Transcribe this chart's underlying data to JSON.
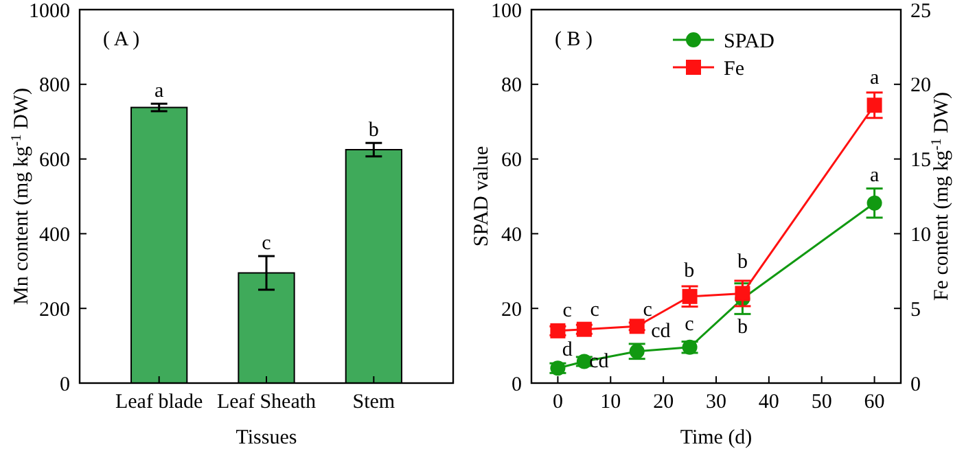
{
  "chart_data": [
    {
      "type": "bar",
      "title": "( A )",
      "xlabel": "Tissues",
      "ylabel": "Mn content (mg kg$^{-1}$ DW)",
      "categories": [
        "Leaf blade",
        "Leaf Sheath",
        "Stem"
      ],
      "values": [
        738,
        295,
        625
      ],
      "errors": [
        10,
        45,
        18
      ],
      "color": "#3faa5a",
      "ylim": [
        0,
        1000
      ],
      "yticks": [
        0,
        200,
        400,
        600,
        800,
        1000
      ],
      "grid": false,
      "annotations": [
        "a",
        "c",
        "b"
      ]
    },
    {
      "type": "line",
      "title": "( B )",
      "xlabel": "Time (d)",
      "ylabel": "SPAD value",
      "y2label": "Fe content (mg kg$^{-1}$ DW)",
      "x": [
        0,
        5,
        15,
        25,
        35,
        60
      ],
      "series": [
        {
          "name": "SPAD",
          "color": "#119911",
          "marker": "circle",
          "values": [
            4.0,
            5.8,
            8.5,
            9.6,
            22.6,
            48.2
          ],
          "errors": [
            1.3,
            1.2,
            2,
            1.5,
            4.1,
            3.9
          ]
        },
        {
          "name": "Fe",
          "color": "#ff1111",
          "marker": "square",
          "axis": "y2",
          "values": [
            3.5,
            3.6,
            3.8,
            5.8,
            6.0,
            18.6
          ],
          "errors": [
            0.3,
            0.3,
            0.25,
            0.68,
            0.85,
            0.85
          ]
        }
      ],
      "xlim": [
        -5,
        65
      ],
      "xticks": [
        0,
        10,
        20,
        30,
        40,
        50,
        60
      ],
      "ylim": [
        0,
        100
      ],
      "yticks": [
        0,
        20,
        40,
        60,
        80,
        100
      ],
      "y2lim": [
        0,
        25
      ],
      "y2ticks": [
        0,
        5,
        10,
        15,
        20,
        25
      ],
      "grid": false,
      "legend": "top",
      "line_style": "solid",
      "annotations": [
        "c",
        "c",
        "c",
        "b",
        "b",
        "a",
        "d",
        "cd",
        "cd",
        "c",
        "b",
        "a"
      ]
    }
  ]
}
